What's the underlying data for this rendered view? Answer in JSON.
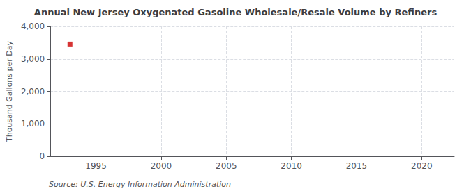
{
  "chart_data": {
    "type": "scatter",
    "title": "Annual New Jersey Oxygenated Gasoline Wholesale/Resale Volume by Refiners",
    "ylabel": "Thousand Gallons per Day",
    "annotations": [
      "Source: U.S. Energy Information Administration"
    ],
    "x": [
      1993
    ],
    "values": [
      3457
    ],
    "color": "#cc0000",
    "marker": "square",
    "xlim": [
      1991.5,
      2022.5
    ],
    "xticks": [
      1995,
      2000,
      2005,
      2010,
      2015,
      2020
    ],
    "ylim": [
      0,
      4000
    ],
    "yticks": [
      0,
      {
        "value": 1000,
        "label": "1,000"
      },
      {
        "value": 2000,
        "label": "2,000"
      },
      {
        "value": 3000,
        "label": "3,000"
      },
      {
        "value": 4000,
        "label": "4,000"
      }
    ],
    "grid": true
  }
}
